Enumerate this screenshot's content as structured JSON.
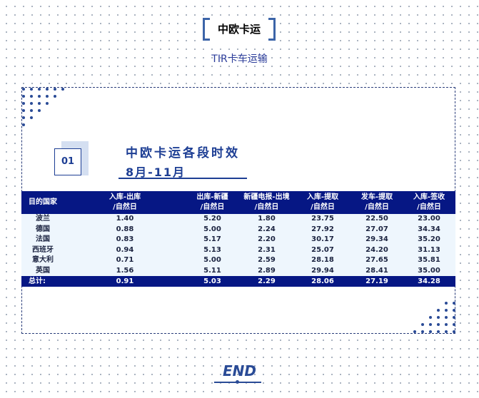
{
  "header": {
    "title": "中欧卡运",
    "subtitle": "TIR卡车运输"
  },
  "section": {
    "number": "01",
    "title": "中欧卡运各段时效",
    "period": "8月-11月"
  },
  "table": {
    "columns": [
      [
        "目的国家",
        ""
      ],
      [
        "入库-出库",
        "/自然日"
      ],
      [
        "出库-新疆",
        "/自然日"
      ],
      [
        "新疆电报-出境",
        "/自然日"
      ],
      [
        "入库-提取",
        "/自然日"
      ],
      [
        "发车-提取",
        "/自然日"
      ],
      [
        "入库-签收",
        "/自然日"
      ]
    ],
    "rows": [
      [
        "波兰",
        "1.40",
        "5.20",
        "1.80",
        "23.75",
        "22.50",
        "23.00"
      ],
      [
        "德国",
        "0.88",
        "5.00",
        "2.24",
        "27.92",
        "27.07",
        "34.34"
      ],
      [
        "法国",
        "0.83",
        "5.17",
        "2.20",
        "30.17",
        "29.34",
        "35.20"
      ],
      [
        "西班牙",
        "0.94",
        "5.13",
        "2.31",
        "25.07",
        "24.20",
        "31.13"
      ],
      [
        "意大利",
        "0.71",
        "5.00",
        "2.59",
        "28.18",
        "27.65",
        "35.81"
      ],
      [
        "英国",
        "1.56",
        "5.11",
        "2.89",
        "29.94",
        "28.41",
        "35.00"
      ]
    ],
    "total": [
      "总计:",
      "0.91",
      "5.03",
      "2.29",
      "28.06",
      "27.19",
      "34.28"
    ]
  },
  "footer": {
    "end_label": "END"
  },
  "colors": {
    "navy": "#061784",
    "accent": "#1d3e94",
    "row_bg": "#eef6fd"
  }
}
